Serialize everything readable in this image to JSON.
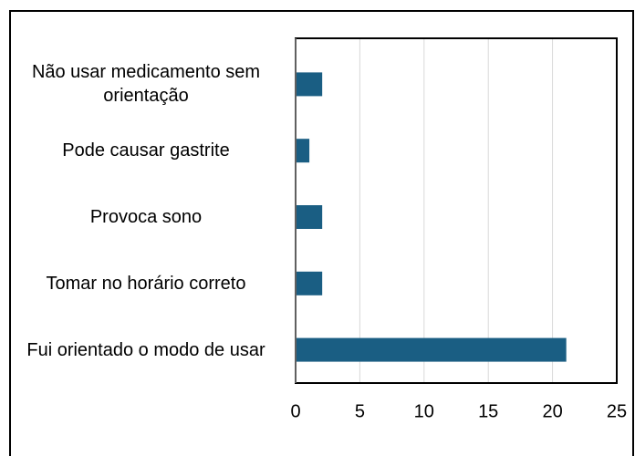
{
  "chart_data": {
    "type": "bar",
    "orientation": "horizontal",
    "categories": [
      "Não usar medicamento sem orientação",
      "Pode causar gastrite",
      "Provoca sono",
      "Tomar no horário correto",
      "Fui orientado o modo de usar"
    ],
    "values": [
      2,
      1,
      2,
      2,
      21
    ],
    "color": "#1a5e83",
    "xlim": [
      0,
      25
    ],
    "xticks": [
      0,
      5,
      10,
      15,
      20,
      25
    ],
    "grid": true
  }
}
